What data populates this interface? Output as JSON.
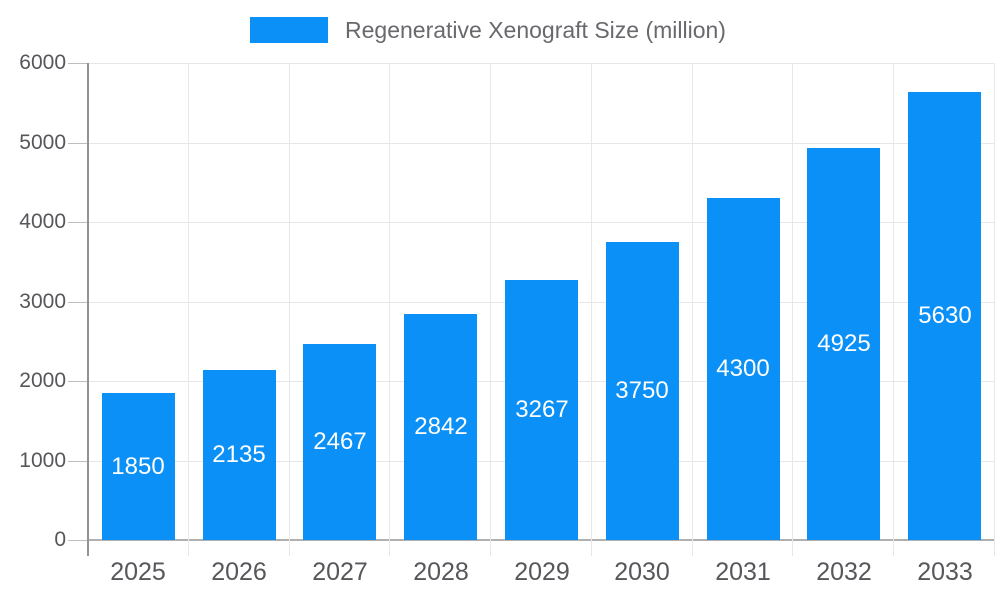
{
  "legend": {
    "label": "Regenerative Xenograft Size (million)"
  },
  "colors": {
    "bar": "#0a90f6",
    "bar_label_text": "#ffffff",
    "axis_text": "#55575b",
    "legend_text": "#68696d",
    "grid_line": "#e7e7e7",
    "baseline": "#b0b0b0",
    "axis_line": "#929292",
    "y_tick": "#bdbdbd",
    "background": "#ffffff"
  },
  "chart_data": {
    "type": "bar",
    "title": "",
    "series": [
      {
        "name": "Regenerative Xenograft Size (million)",
        "values": [
          1850,
          2135,
          2467,
          2842,
          3267,
          3750,
          4300,
          4925,
          5630
        ]
      }
    ],
    "categories": [
      "2025",
      "2026",
      "2027",
      "2028",
      "2029",
      "2030",
      "2031",
      "2032",
      "2033"
    ],
    "xlabel": "",
    "ylabel": "",
    "ylim": [
      0,
      6000
    ],
    "ytick_interval": 1000,
    "yticks": [
      "0",
      "1000",
      "2000",
      "3000",
      "4000",
      "5000",
      "6000"
    ],
    "grid": "horizontal-and-vertical",
    "legend_position": "top-center",
    "value_labels": "inside-center"
  }
}
